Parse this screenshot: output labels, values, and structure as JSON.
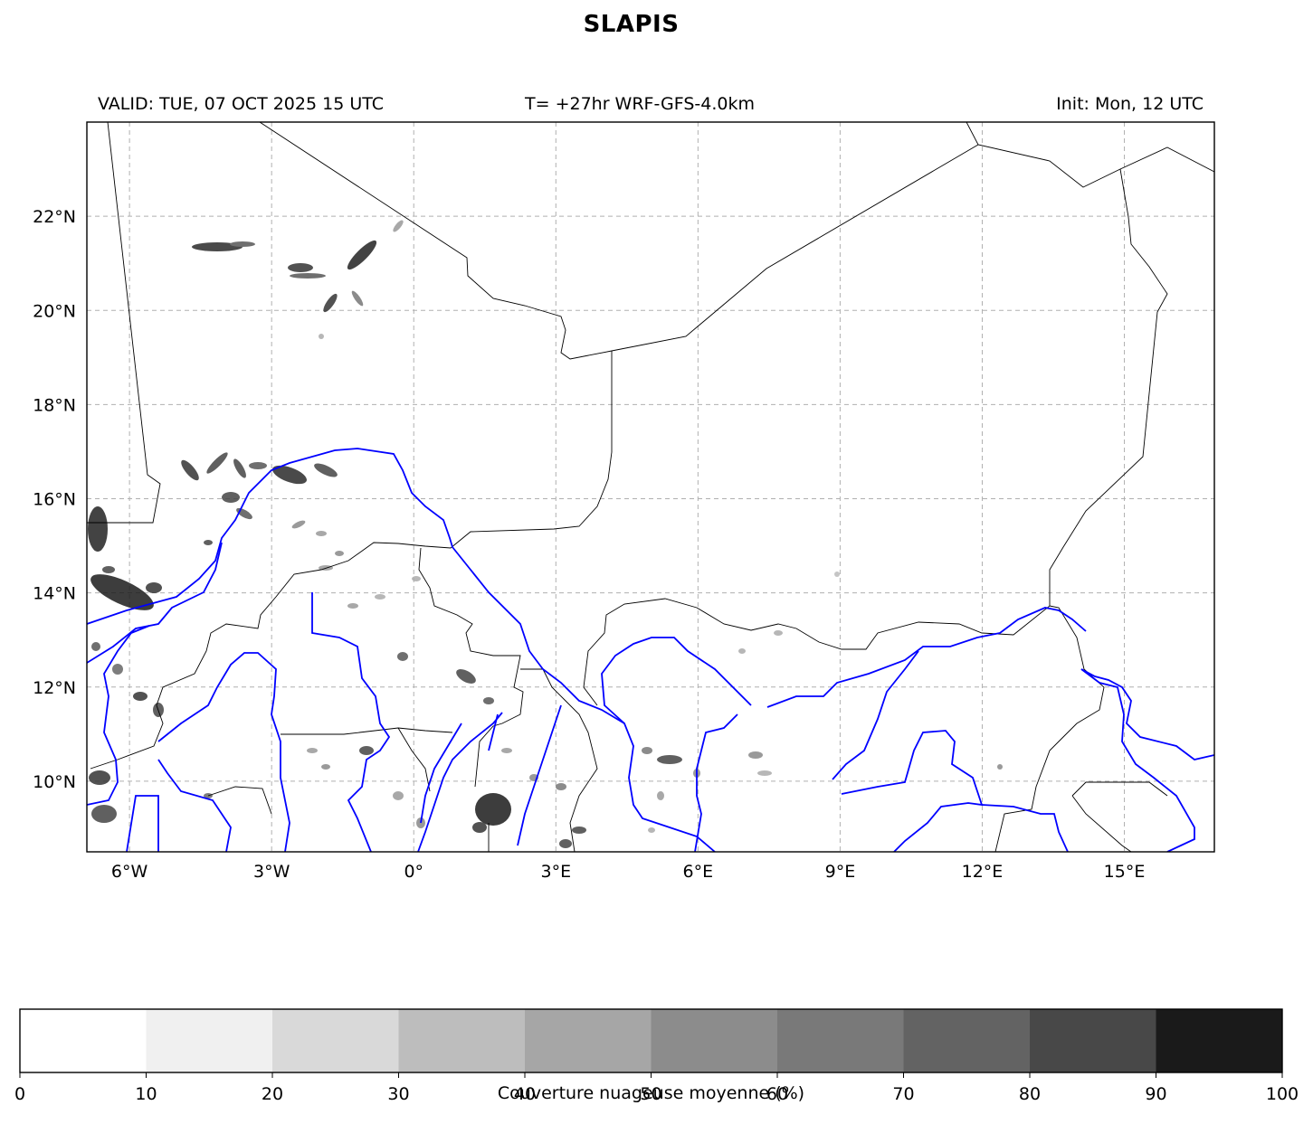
{
  "title": "SLAPIS",
  "header": {
    "valid": "VALID: TUE, 07 OCT 2025 15 UTC",
    "model": "T= +27hr WRF-GFS-4.0km",
    "init": "Init: Mon, 12 UTC"
  },
  "map": {
    "lon_range": [
      -6.9,
      16.9
    ],
    "lat_range": [
      8.5,
      24.0
    ],
    "gridlines": true,
    "lon_ticks": [
      -6,
      -3,
      0,
      3,
      6,
      9,
      12,
      15
    ],
    "lon_tick_labels": [
      "6°W",
      "3°W",
      "0°",
      "3°E",
      "6°E",
      "9°E",
      "12°E",
      "15°E"
    ],
    "lat_ticks": [
      10,
      12,
      14,
      16,
      18,
      20,
      22
    ],
    "lat_tick_labels": [
      "10°N",
      "12°N",
      "14°N",
      "16°N",
      "18°N",
      "20°N",
      "22°N"
    ],
    "border_color": "#000000",
    "river_color": "#0000ff"
  },
  "colorbar": {
    "label": "Couverture nuageuse moyenne (%)",
    "ticks": [
      "0",
      "10",
      "20",
      "30",
      "40",
      "50",
      "60",
      "70",
      "80",
      "90",
      "100"
    ],
    "colors": [
      "#ffffff",
      "#f0f0f0",
      "#d9d9d9",
      "#bdbdbd",
      "#a6a6a6",
      "#8c8c8c",
      "#797979",
      "#636363",
      "#484848",
      "#1a1a1a"
    ]
  }
}
